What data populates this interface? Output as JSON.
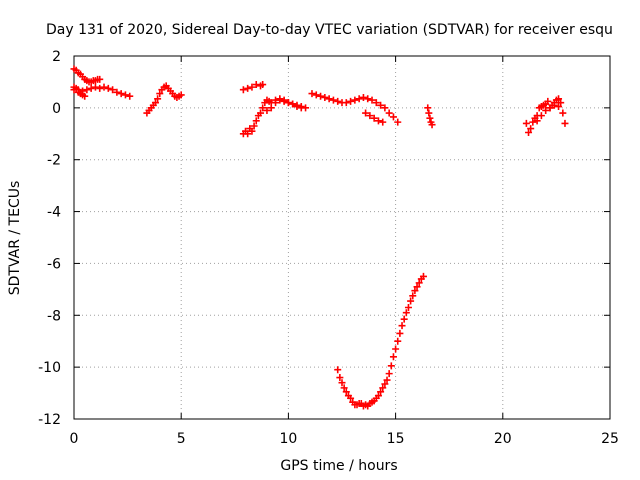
{
  "chart_data": {
    "type": "scatter",
    "title": "Day 131 of 2020, Sidereal Day-to-day VTEC variation (SDTVAR) for receiver esqu",
    "xlabel": "GPS time / hours",
    "ylabel": "SDTVAR / TECUs",
    "xlim": [
      0,
      25
    ],
    "ylim": [
      -12,
      2
    ],
    "xticks": [
      0,
      5,
      10,
      15,
      20,
      25
    ],
    "yticks": [
      2,
      0,
      -2,
      -4,
      -6,
      -8,
      -10,
      -12
    ],
    "grid": true,
    "marker": "+",
    "color": "#ff0000",
    "series": [
      {
        "name": "SDTVAR",
        "x": [
          0.0,
          0.1,
          0.2,
          0.3,
          0.4,
          0.5,
          0.6,
          0.7,
          0.8,
          0.9,
          1.0,
          1.1,
          1.2,
          0.0,
          0.2,
          0.4,
          0.6,
          0.8,
          1.0,
          1.2,
          1.4,
          1.6,
          1.8,
          2.0,
          2.2,
          2.4,
          2.6,
          0.0,
          0.1,
          0.2,
          0.3,
          0.4,
          0.5,
          3.4,
          3.5,
          3.6,
          3.7,
          3.8,
          3.9,
          4.0,
          4.1,
          4.2,
          4.3,
          4.4,
          4.5,
          4.6,
          4.7,
          4.8,
          4.9,
          5.0,
          7.9,
          8.1,
          8.3,
          8.5,
          8.7,
          8.8,
          7.9,
          8.0,
          8.1,
          8.2,
          8.3,
          8.4,
          8.5,
          8.6,
          8.7,
          8.8,
          8.9,
          9.0,
          9.1,
          9.2,
          9.4,
          9.6,
          9.8,
          10.0,
          10.2,
          10.4,
          10.6,
          10.8,
          9.0,
          9.2,
          9.4,
          9.6,
          9.8,
          10.0,
          10.2,
          10.4,
          10.6,
          11.1,
          11.3,
          11.5,
          11.7,
          11.9,
          12.1,
          12.3,
          12.5,
          12.7,
          12.9,
          13.1,
          13.3,
          13.5,
          13.7,
          13.9,
          14.1,
          14.3,
          14.5,
          14.7,
          14.9,
          15.1,
          13.6,
          13.8,
          14.0,
          14.2,
          14.4,
          12.3,
          12.4,
          12.5,
          12.6,
          12.7,
          12.8,
          12.9,
          13.0,
          13.1,
          13.2,
          13.3,
          13.4,
          13.5,
          13.6,
          13.7,
          13.8,
          13.9,
          14.0,
          14.1,
          14.2,
          14.3,
          14.4,
          14.5,
          14.6,
          14.7,
          14.8,
          14.9,
          15.0,
          15.1,
          15.2,
          15.3,
          15.4,
          15.5,
          15.6,
          15.7,
          15.8,
          15.9,
          16.0,
          16.1,
          16.2,
          16.3,
          16.5,
          16.55,
          16.6,
          16.65,
          16.7,
          21.1,
          21.2,
          21.3,
          21.4,
          21.5,
          21.6,
          21.7,
          21.8,
          21.9,
          22.0,
          22.1,
          22.2,
          22.3,
          22.4,
          22.5,
          22.6,
          22.7,
          22.8,
          22.9,
          21.6,
          21.8,
          22.0,
          22.2,
          22.4,
          22.6
        ],
        "y": [
          1.5,
          1.45,
          1.35,
          1.3,
          1.2,
          1.1,
          1.05,
          1.0,
          1.0,
          1.05,
          1.05,
          1.1,
          1.1,
          0.7,
          0.7,
          0.65,
          0.7,
          0.75,
          0.8,
          0.75,
          0.8,
          0.75,
          0.7,
          0.6,
          0.55,
          0.5,
          0.45,
          0.8,
          0.75,
          0.6,
          0.55,
          0.5,
          0.45,
          -0.2,
          -0.1,
          0.0,
          0.1,
          0.2,
          0.35,
          0.55,
          0.7,
          0.8,
          0.85,
          0.75,
          0.65,
          0.55,
          0.45,
          0.4,
          0.45,
          0.5,
          0.7,
          0.75,
          0.8,
          0.9,
          0.85,
          0.9,
          -1.0,
          -0.9,
          -1.0,
          -0.8,
          -0.9,
          -0.7,
          -0.5,
          -0.3,
          -0.2,
          0.0,
          0.2,
          0.3,
          0.25,
          0.2,
          0.3,
          0.35,
          0.3,
          0.2,
          0.15,
          0.1,
          0.05,
          0.0,
          -0.1,
          0.0,
          0.2,
          0.3,
          0.25,
          0.2,
          0.15,
          0.05,
          0.0,
          0.55,
          0.5,
          0.45,
          0.4,
          0.35,
          0.3,
          0.25,
          0.2,
          0.2,
          0.25,
          0.3,
          0.35,
          0.4,
          0.35,
          0.3,
          0.2,
          0.1,
          0.0,
          -0.2,
          -0.35,
          -0.55,
          -0.2,
          -0.3,
          -0.4,
          -0.5,
          -0.55,
          -10.1,
          -10.4,
          -10.6,
          -10.8,
          -10.95,
          -11.1,
          -11.2,
          -11.35,
          -11.45,
          -11.45,
          -11.4,
          -11.4,
          -11.5,
          -11.45,
          -11.5,
          -11.4,
          -11.35,
          -11.3,
          -11.2,
          -11.1,
          -10.95,
          -10.8,
          -10.65,
          -10.5,
          -10.25,
          -9.95,
          -9.6,
          -9.3,
          -9.0,
          -8.7,
          -8.4,
          -8.15,
          -7.9,
          -7.7,
          -7.45,
          -7.25,
          -7.05,
          -6.9,
          -6.75,
          -6.6,
          -6.5,
          0.0,
          -0.2,
          -0.4,
          -0.55,
          -0.65,
          -0.6,
          -0.95,
          -0.8,
          -0.55,
          -0.4,
          -0.3,
          0.0,
          0.05,
          0.1,
          0.15,
          0.25,
          0.0,
          0.1,
          0.2,
          0.3,
          0.35,
          0.2,
          -0.2,
          -0.6,
          -0.5,
          -0.3,
          -0.1,
          0.0,
          0.1,
          0.05
        ]
      }
    ]
  }
}
